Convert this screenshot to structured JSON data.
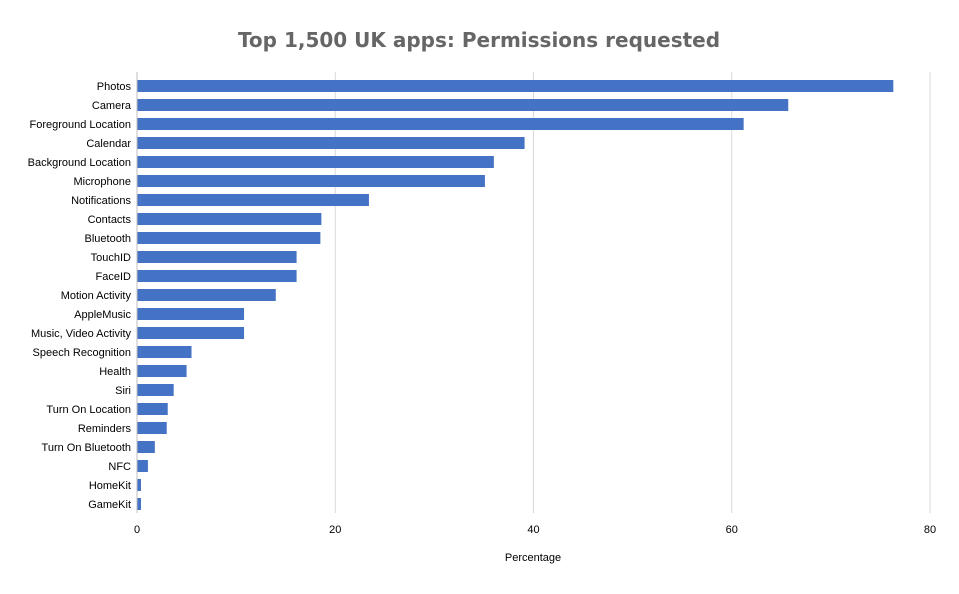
{
  "chart_data": {
    "type": "bar",
    "orientation": "horizontal",
    "title": "Top 1,500 UK apps: Permissions requested",
    "xlabel": "Percentage",
    "ylabel": "",
    "xlim": [
      0,
      80
    ],
    "xticks": [
      0,
      20,
      40,
      60,
      80
    ],
    "grid": true,
    "bar_color": "#4472C4",
    "categories": [
      "Photos",
      "Camera",
      "Foreground Location",
      "Calendar",
      "Background Location",
      "Microphone",
      "Notifications",
      "Contacts",
      "Bluetooth",
      "TouchID",
      "FaceID",
      "Motion Activity",
      "AppleMusic",
      "Music, Video Activity",
      "Speech Recognition",
      "Health",
      "Siri",
      "Turn On Location",
      "Reminders",
      "Turn On Bluetooth",
      "NFC",
      "HomeKit",
      "GameKit"
    ],
    "values": [
      76.3,
      65.7,
      61.2,
      39.1,
      36.0,
      35.1,
      23.4,
      18.6,
      18.5,
      16.1,
      16.1,
      14.0,
      10.8,
      10.8,
      5.5,
      5.0,
      3.7,
      3.1,
      3.0,
      1.8,
      1.1,
      0.4,
      0.4
    ]
  }
}
